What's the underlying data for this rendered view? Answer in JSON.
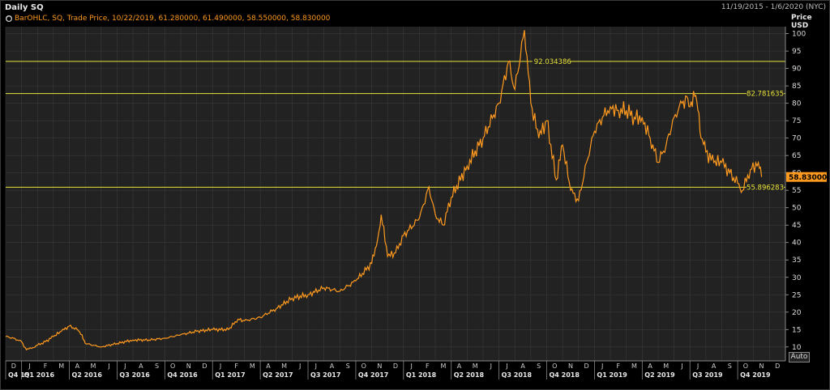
{
  "header": {
    "title": "Daily SQ",
    "date_range": "11/19/2015 - 1/6/2020 (NYC)",
    "legend": "BarOHLC, SQ, Trade Price,  10/22/2019, 61.280000, 61.490000, 58.550000, 58.830000"
  },
  "axis": {
    "title_line1": "Price",
    "title_line2": "USD",
    "auto_label": "Auto"
  },
  "colors": {
    "background": "#000000",
    "plot": "#222222",
    "grid": "#3a3a3a",
    "price": "#ff9a1f",
    "level": "#e8e23a",
    "last_price_bg": "#ff9a1f"
  },
  "chart_data": {
    "type": "line",
    "ylabel": "Price USD",
    "ylim": [
      6,
      102
    ],
    "yticks": [
      10,
      15,
      20,
      25,
      30,
      35,
      40,
      45,
      50,
      55,
      60,
      65,
      70,
      75,
      80,
      85,
      90,
      95,
      100
    ],
    "months": [
      "D",
      "J",
      "F",
      "M",
      "A",
      "M",
      "J",
      "J",
      "A",
      "S",
      "O",
      "N",
      "D",
      "J",
      "F",
      "M",
      "A",
      "M",
      "J",
      "J",
      "A",
      "S",
      "O",
      "N",
      "D",
      "J",
      "F",
      "M",
      "A",
      "M",
      "J",
      "J",
      "A",
      "S",
      "O",
      "N",
      "D",
      "J",
      "F",
      "M",
      "A",
      "M",
      "J",
      "J",
      "A",
      "S",
      "O",
      "N",
      "D"
    ],
    "quarters": [
      "Q4 15",
      "Q1 2016",
      "Q2 2016",
      "Q3 2016",
      "Q4 2016",
      "Q1 2017",
      "Q2 2017",
      "Q3 2017",
      "Q4 2017",
      "Q1 2018",
      "Q2 2018",
      "Q3 2018",
      "Q4 2018",
      "Q1 2019",
      "Q2 2019",
      "Q3 2019",
      "Q4 2019"
    ],
    "series": [
      {
        "points": [
          [
            0,
            13
          ],
          [
            0.5,
            12.5
          ],
          [
            1,
            11.5
          ],
          [
            1.3,
            9.2
          ],
          [
            1.7,
            9.8
          ],
          [
            2,
            10.5
          ],
          [
            2.5,
            11.5
          ],
          [
            3,
            13
          ],
          [
            3.5,
            14.5
          ],
          [
            4,
            16
          ],
          [
            4.5,
            15
          ],
          [
            4.8,
            13.5
          ],
          [
            5,
            11
          ],
          [
            6,
            10
          ],
          [
            7,
            11
          ],
          [
            8,
            12
          ],
          [
            9,
            12
          ],
          [
            10,
            12.5
          ],
          [
            11,
            13.5
          ],
          [
            12,
            14.5
          ],
          [
            13,
            15
          ],
          [
            14,
            15
          ],
          [
            14.6,
            18
          ],
          [
            15,
            17.5
          ],
          [
            16,
            18.5
          ],
          [
            17,
            21
          ],
          [
            18,
            24
          ],
          [
            19,
            25
          ],
          [
            20,
            27
          ],
          [
            21,
            26
          ],
          [
            22,
            29
          ],
          [
            23,
            34
          ],
          [
            23.3,
            39
          ],
          [
            23.6,
            48
          ],
          [
            24,
            36
          ],
          [
            24.5,
            37
          ],
          [
            25,
            42
          ],
          [
            26,
            47
          ],
          [
            26.6,
            56
          ],
          [
            27,
            48
          ],
          [
            27.5,
            45
          ],
          [
            28,
            53
          ],
          [
            29,
            62
          ],
          [
            30,
            70
          ],
          [
            31,
            80
          ],
          [
            31.6,
            92
          ],
          [
            32,
            84
          ],
          [
            32.6,
            101
          ],
          [
            33,
            80
          ],
          [
            33.5,
            70
          ],
          [
            34,
            75
          ],
          [
            34.6,
            58
          ],
          [
            35,
            68
          ],
          [
            35.5,
            55
          ],
          [
            36,
            52
          ],
          [
            36.5,
            63
          ],
          [
            37,
            72
          ],
          [
            37.5,
            76
          ],
          [
            38,
            79
          ],
          [
            38.5,
            78
          ],
          [
            39,
            78
          ],
          [
            39.5,
            76
          ],
          [
            40,
            76
          ],
          [
            40.5,
            70
          ],
          [
            41,
            63
          ],
          [
            41.5,
            68
          ],
          [
            42,
            76
          ],
          [
            42.5,
            80
          ],
          [
            42.8,
            82
          ],
          [
            43,
            79
          ],
          [
            43.3,
            82
          ],
          [
            43.5,
            78
          ],
          [
            43.7,
            70
          ],
          [
            44,
            66
          ],
          [
            44.5,
            63
          ],
          [
            45,
            63
          ],
          [
            45.5,
            60
          ],
          [
            46,
            57
          ],
          [
            46.3,
            55
          ],
          [
            46.8,
            61
          ],
          [
            47.3,
            63
          ],
          [
            47.5,
            58.83
          ]
        ]
      }
    ],
    "levels": [
      {
        "value": 92.034386,
        "label": "92.034386",
        "label_position": "middle"
      },
      {
        "value": 82.781635,
        "label": "82.781635",
        "label_position": "right"
      },
      {
        "value": 55.896283,
        "label": "55.896283",
        "label_position": "right"
      }
    ],
    "last_price": {
      "value": 58.83,
      "label": "58.830000"
    },
    "grid": true
  }
}
